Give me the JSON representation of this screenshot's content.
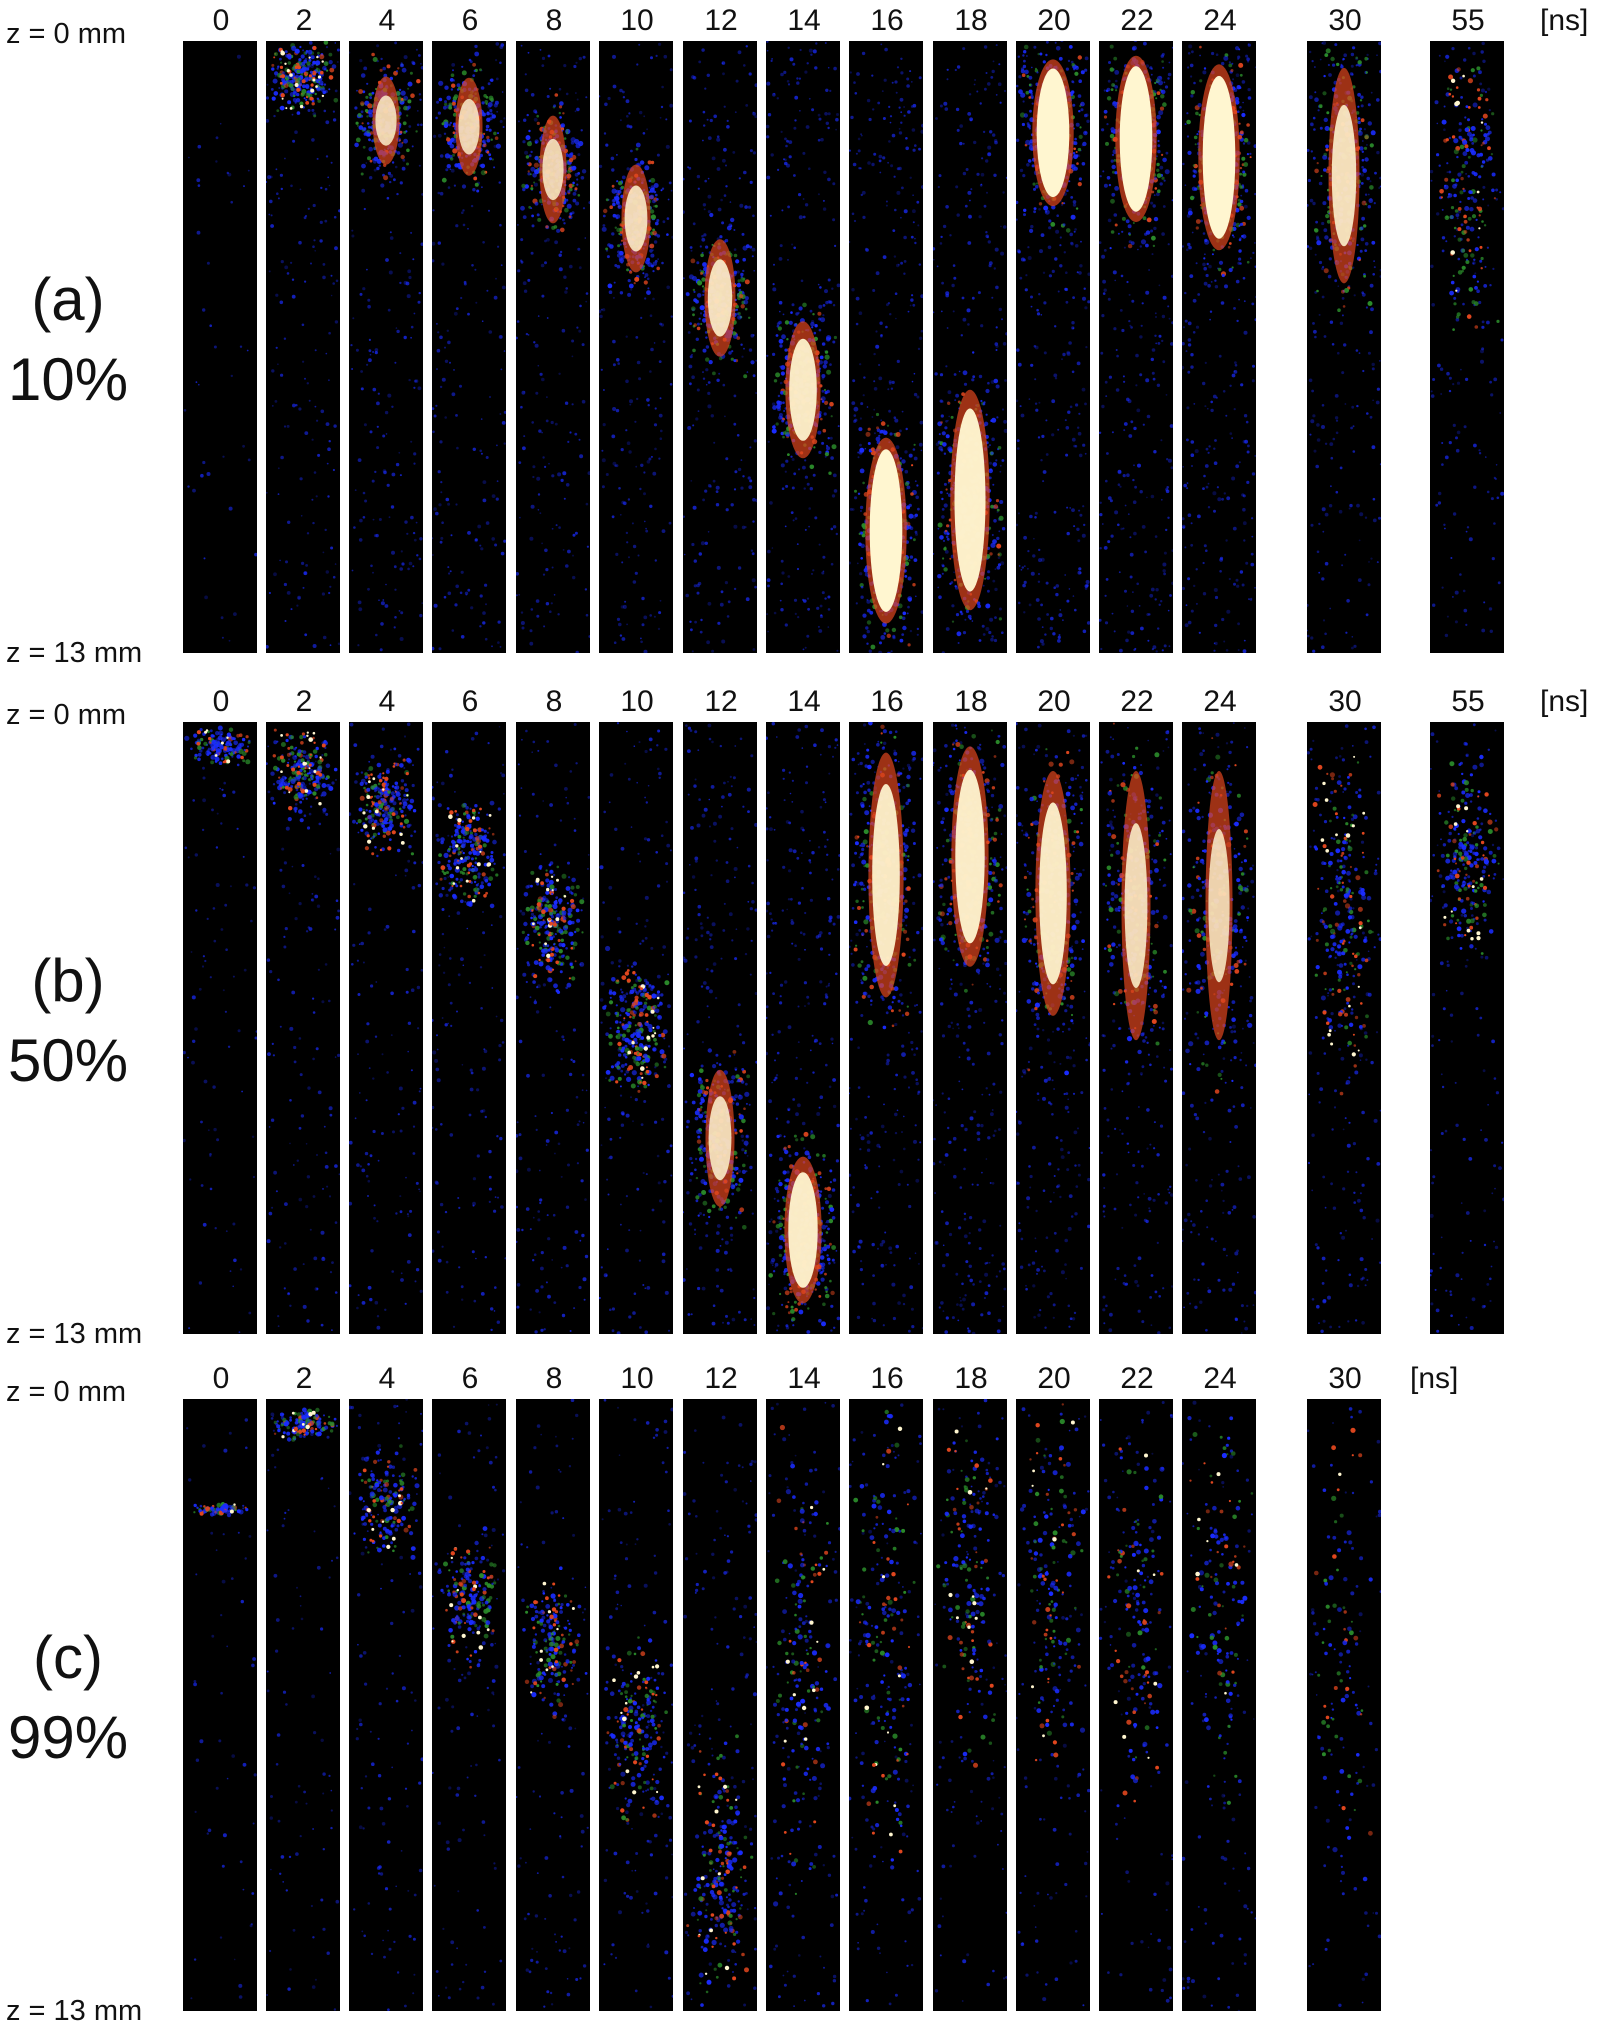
{
  "time_unit": "[ns]",
  "z_top": "z = 0 mm",
  "z_bottom": "z = 13 mm",
  "colors": {
    "frame_bg": "#000000",
    "low": "#1a2cff",
    "mid": "#2a8a2a",
    "high": "#e0461e",
    "peak": "#fff6d0"
  },
  "panels": [
    {
      "letter": "(a)",
      "percent": "10%",
      "times": [
        "0",
        "2",
        "4",
        "6",
        "8",
        "10",
        "12",
        "14",
        "16",
        "18",
        "20",
        "22",
        "24",
        "30",
        "55"
      ],
      "frames": [
        {
          "center": 0.0,
          "length": 0.0,
          "intensity": 0.0
        },
        {
          "center": 0.06,
          "length": 0.12,
          "intensity": 0.55
        },
        {
          "center": 0.13,
          "length": 0.18,
          "intensity": 0.65
        },
        {
          "center": 0.14,
          "length": 0.2,
          "intensity": 0.65
        },
        {
          "center": 0.21,
          "length": 0.22,
          "intensity": 0.65
        },
        {
          "center": 0.29,
          "length": 0.22,
          "intensity": 0.7
        },
        {
          "center": 0.42,
          "length": 0.24,
          "intensity": 0.75
        },
        {
          "center": 0.57,
          "length": 0.28,
          "intensity": 0.85
        },
        {
          "center": 0.8,
          "length": 0.38,
          "intensity": 1.0
        },
        {
          "center": 0.75,
          "length": 0.45,
          "intensity": 0.95
        },
        {
          "center": 0.15,
          "length": 0.3,
          "intensity": 1.0
        },
        {
          "center": 0.16,
          "length": 0.34,
          "intensity": 1.0
        },
        {
          "center": 0.19,
          "length": 0.38,
          "intensity": 1.0
        },
        {
          "center": 0.22,
          "length": 0.44,
          "intensity": 0.75
        },
        {
          "center": 0.25,
          "length": 0.48,
          "intensity": 0.4
        }
      ]
    },
    {
      "letter": "(b)",
      "percent": "50%",
      "times": [
        "0",
        "2",
        "4",
        "6",
        "8",
        "10",
        "12",
        "14",
        "16",
        "18",
        "20",
        "22",
        "24",
        "30",
        "55"
      ],
      "frames": [
        {
          "center": 0.04,
          "length": 0.06,
          "intensity": 0.2
        },
        {
          "center": 0.08,
          "length": 0.14,
          "intensity": 0.45
        },
        {
          "center": 0.14,
          "length": 0.16,
          "intensity": 0.45
        },
        {
          "center": 0.22,
          "length": 0.18,
          "intensity": 0.45
        },
        {
          "center": 0.33,
          "length": 0.2,
          "intensity": 0.5
        },
        {
          "center": 0.5,
          "length": 0.22,
          "intensity": 0.55
        },
        {
          "center": 0.68,
          "length": 0.28,
          "intensity": 0.7
        },
        {
          "center": 0.83,
          "length": 0.3,
          "intensity": 0.9
        },
        {
          "center": 0.25,
          "length": 0.5,
          "intensity": 0.85
        },
        {
          "center": 0.22,
          "length": 0.45,
          "intensity": 0.9
        },
        {
          "center": 0.28,
          "length": 0.5,
          "intensity": 0.85
        },
        {
          "center": 0.3,
          "length": 0.55,
          "intensity": 0.7
        },
        {
          "center": 0.3,
          "length": 0.55,
          "intensity": 0.65
        },
        {
          "center": 0.3,
          "length": 0.55,
          "intensity": 0.5
        },
        {
          "center": 0.22,
          "length": 0.3,
          "intensity": 0.4
        }
      ]
    },
    {
      "letter": "(c)",
      "percent": "99%",
      "times": [
        "0",
        "2",
        "4",
        "6",
        "8",
        "10",
        "12",
        "14",
        "16",
        "18",
        "20",
        "22",
        "24",
        "30"
      ],
      "frames": [
        {
          "center": 0.18,
          "length": 0.02,
          "intensity": 0.05
        },
        {
          "center": 0.04,
          "length": 0.05,
          "intensity": 0.2
        },
        {
          "center": 0.17,
          "length": 0.18,
          "intensity": 0.3
        },
        {
          "center": 0.33,
          "length": 0.2,
          "intensity": 0.3
        },
        {
          "center": 0.4,
          "length": 0.22,
          "intensity": 0.3
        },
        {
          "center": 0.55,
          "length": 0.28,
          "intensity": 0.35
        },
        {
          "center": 0.78,
          "length": 0.4,
          "intensity": 0.4
        },
        {
          "center": 0.45,
          "length": 0.8,
          "intensity": 0.3
        },
        {
          "center": 0.4,
          "length": 0.8,
          "intensity": 0.3
        },
        {
          "center": 0.3,
          "length": 0.6,
          "intensity": 0.28
        },
        {
          "center": 0.3,
          "length": 0.6,
          "intensity": 0.25
        },
        {
          "center": 0.35,
          "length": 0.6,
          "intensity": 0.22
        },
        {
          "center": 0.35,
          "length": 0.6,
          "intensity": 0.2
        },
        {
          "center": 0.4,
          "length": 0.7,
          "intensity": 0.1
        }
      ]
    }
  ]
}
